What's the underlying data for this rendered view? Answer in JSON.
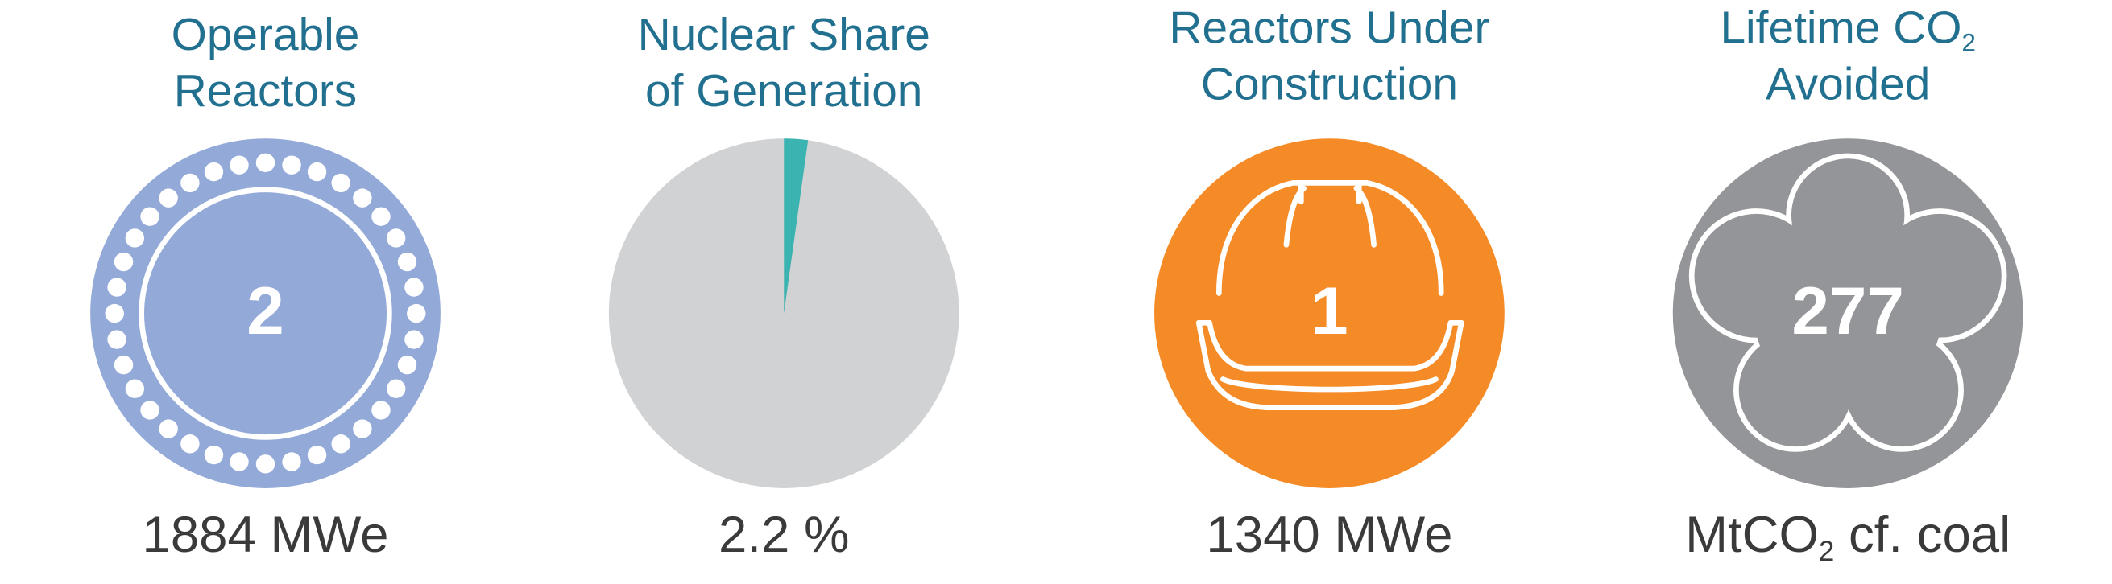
{
  "panels": [
    {
      "title_lines": [
        [
          {
            "text": "Operable"
          }
        ],
        [
          {
            "text": "Reactors"
          }
        ]
      ],
      "value": 2,
      "caption": [
        {
          "text": "1884 MWe"
        }
      ]
    },
    {
      "title_lines": [
        [
          {
            "text": "Nuclear Share"
          }
        ],
        [
          {
            "text": "of Generation"
          }
        ]
      ],
      "share": 2.2,
      "caption": [
        {
          "text": "2.2 %"
        }
      ]
    },
    {
      "title_lines": [
        [
          {
            "text": "Reactors Under"
          }
        ],
        [
          {
            "text": "Construction"
          }
        ]
      ],
      "value": 1,
      "caption": [
        {
          "text": "1340 MWe"
        }
      ]
    },
    {
      "title_lines": [
        [
          {
            "text": "Lifetime CO"
          },
          {
            "text": "2",
            "sub": true
          }
        ],
        [
          {
            "text": "Avoided"
          }
        ]
      ],
      "value": 277,
      "caption": [
        {
          "text": "MtCO"
        },
        {
          "text": "2",
          "sub": true
        },
        {
          "text": " cf. coal"
        }
      ]
    }
  ]
}
